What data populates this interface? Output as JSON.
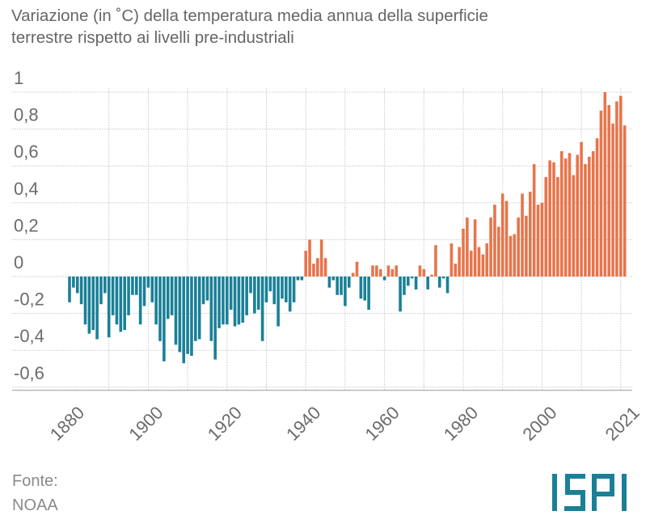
{
  "chart_data": {
    "type": "bar",
    "title_lines": [
      "Variazione (in ˚C) della temperatura media annua della superficie",
      "terrestre rispetto ai livelli pre-industriali"
    ],
    "xlabel": "",
    "ylabel": "",
    "ylim": [
      -0.6,
      1
    ],
    "y_ticks": [
      1,
      0.8,
      0.6,
      0.4,
      0.2,
      0,
      -0.2,
      -0.4,
      -0.6
    ],
    "y_tick_labels": [
      "1",
      "0,8",
      "0,6",
      "0,4",
      "0,2",
      "0",
      "-0,2",
      "-0,4",
      "-0,6"
    ],
    "x_tick_labels": [
      "1880",
      "1900",
      "1920",
      "1940",
      "1960",
      "1980",
      "2000",
      "2021"
    ],
    "grid": true,
    "start_year": 1880,
    "end_year": 2021,
    "values": [
      -0.14,
      -0.06,
      -0.09,
      -0.15,
      -0.26,
      -0.31,
      -0.29,
      -0.34,
      -0.15,
      -0.09,
      -0.33,
      -0.21,
      -0.26,
      -0.3,
      -0.29,
      -0.21,
      -0.1,
      -0.1,
      -0.26,
      -0.16,
      -0.06,
      -0.14,
      -0.26,
      -0.35,
      -0.46,
      -0.23,
      -0.21,
      -0.37,
      -0.41,
      -0.47,
      -0.42,
      -0.43,
      -0.35,
      -0.34,
      -0.15,
      -0.13,
      -0.35,
      -0.45,
      -0.28,
      -0.26,
      -0.26,
      -0.18,
      -0.27,
      -0.26,
      -0.25,
      -0.21,
      -0.09,
      -0.2,
      -0.18,
      -0.35,
      -0.14,
      -0.08,
      -0.15,
      -0.27,
      -0.12,
      -0.14,
      -0.19,
      -0.14,
      -0.02,
      -0.02,
      0.14,
      0.2,
      0.07,
      0.1,
      0.2,
      0.1,
      -0.06,
      -0.02,
      -0.1,
      -0.1,
      -0.16,
      -0.06,
      0.02,
      0.08,
      -0.12,
      -0.13,
      -0.18,
      0.06,
      0.06,
      0.04,
      -0.02,
      0.06,
      0.04,
      0.06,
      -0.19,
      -0.1,
      -0.05,
      -0.01,
      -0.07,
      0.06,
      0.04,
      -0.07,
      0.01,
      0.17,
      -0.06,
      -0.01,
      -0.09,
      0.18,
      0.07,
      0.16,
      0.26,
      0.32,
      0.14,
      0.31,
      0.16,
      0.12,
      0.18,
      0.32,
      0.39,
      0.27,
      0.45,
      0.41,
      0.22,
      0.23,
      0.32,
      0.45,
      0.33,
      0.46,
      0.61,
      0.39,
      0.4,
      0.54,
      0.63,
      0.62,
      0.54,
      0.68,
      0.64,
      0.67,
      0.55,
      0.66,
      0.73,
      0.61,
      0.65,
      0.68,
      0.75,
      0.9,
      1.0,
      0.93,
      0.83,
      0.95,
      0.98,
      0.82
    ],
    "colors": {
      "positive": "#e8744b",
      "negative": "#1a8097"
    }
  },
  "footer": {
    "source_label": "Fonte:",
    "source": "NOAA",
    "logo_text": "ISPI",
    "logo_color": "#1a8097"
  }
}
